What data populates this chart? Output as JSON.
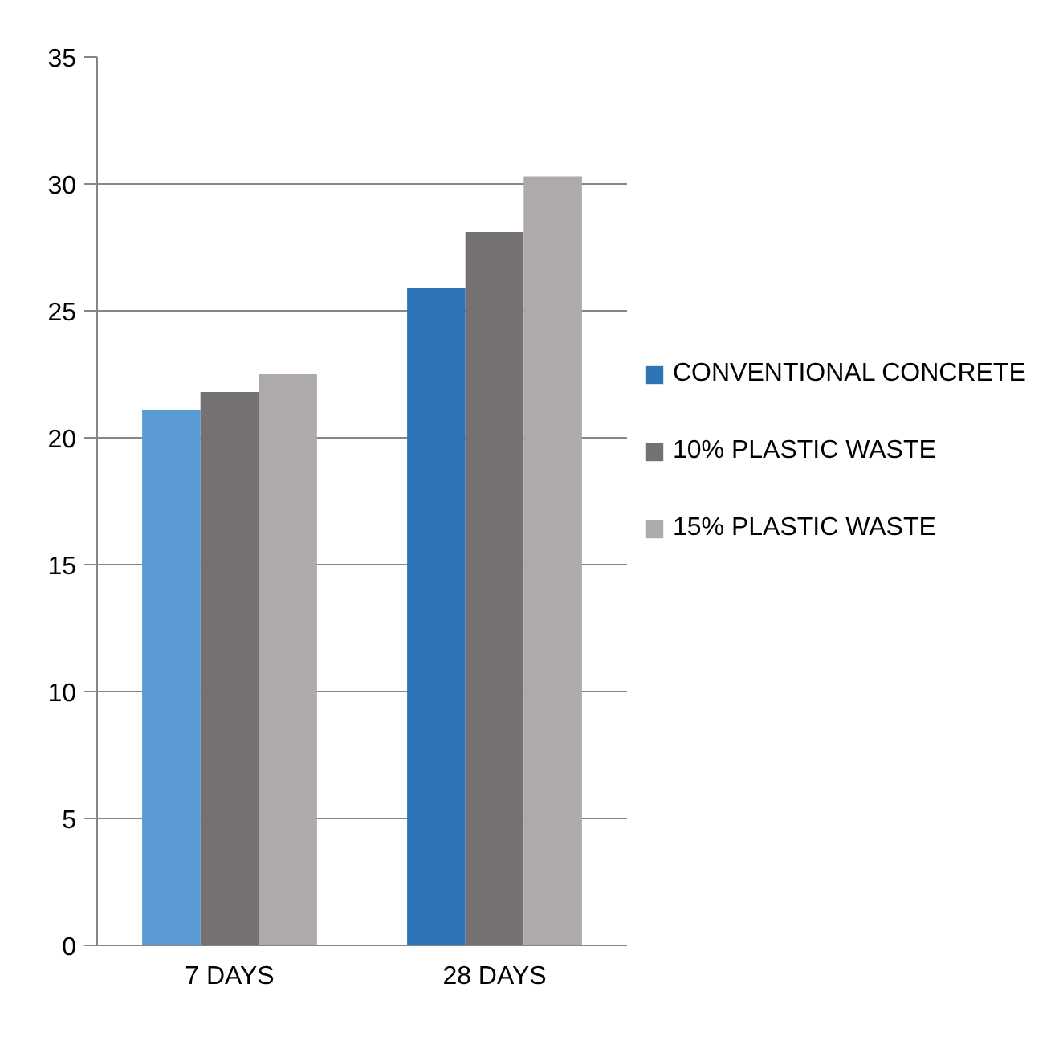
{
  "chart_data": {
    "type": "bar",
    "categories": [
      "7 DAYS",
      "28 DAYS"
    ],
    "series": [
      {
        "name": "CONVENTIONAL CONCRETE",
        "color": "#2e75b6",
        "colors": [
          "#5b9bd5",
          "#2e75b6"
        ],
        "values": [
          21.1,
          25.9
        ]
      },
      {
        "name": "10% PLASTIC WASTE",
        "color": "#767171",
        "values": [
          21.8,
          28.1
        ]
      },
      {
        "name": "15% PLASTIC WASTE",
        "color": "#aeaaaa",
        "values": [
          22.5,
          30.3
        ]
      }
    ],
    "ylim": [
      0,
      35
    ],
    "yticks": [
      0,
      5,
      10,
      15,
      20,
      25,
      30,
      35
    ],
    "grid": "y",
    "legend": "right"
  }
}
